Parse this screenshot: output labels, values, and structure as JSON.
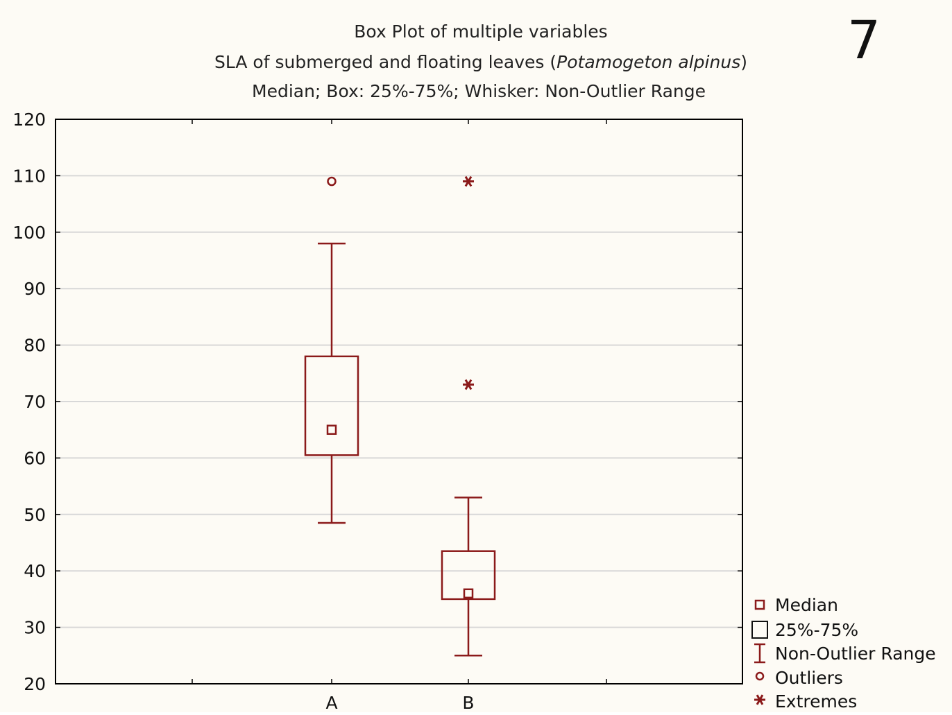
{
  "figure_label": "7",
  "chart_data": {
    "type": "box",
    "title": "Box Plot of multiple variables",
    "subtitle_prefix": "SLA of submerged and floating leaves (",
    "subtitle_italic": "Potamogeton alpinus",
    "subtitle_suffix": ")",
    "note": "Median; Box: 25%-75%; Whisker: Non-Outlier Range",
    "ylim": [
      20,
      120
    ],
    "y_ticks": [
      20,
      30,
      40,
      50,
      60,
      70,
      80,
      90,
      100,
      110,
      120
    ],
    "grid": true,
    "categories": [
      "A",
      "B"
    ],
    "boxes": [
      {
        "category": "A",
        "median": 65,
        "q1": 60.5,
        "q3": 78,
        "whisker_low": 48.5,
        "whisker_high": 98,
        "outliers": [
          109
        ],
        "extremes": []
      },
      {
        "category": "B",
        "median": 36,
        "q1": 35,
        "q3": 43.5,
        "whisker_low": 25,
        "whisker_high": 53,
        "outliers": [],
        "extremes": [
          73,
          109
        ]
      }
    ],
    "legend": {
      "position": "right-bottom",
      "items": [
        "Median",
        "25%-75%",
        "Non-Outlier Range",
        "Outliers",
        "Extremes"
      ]
    },
    "colors": {
      "series": "#8b1a1a",
      "grid": "#d8d8d8",
      "axis": "#000000",
      "background": "#fdfbf5"
    }
  }
}
